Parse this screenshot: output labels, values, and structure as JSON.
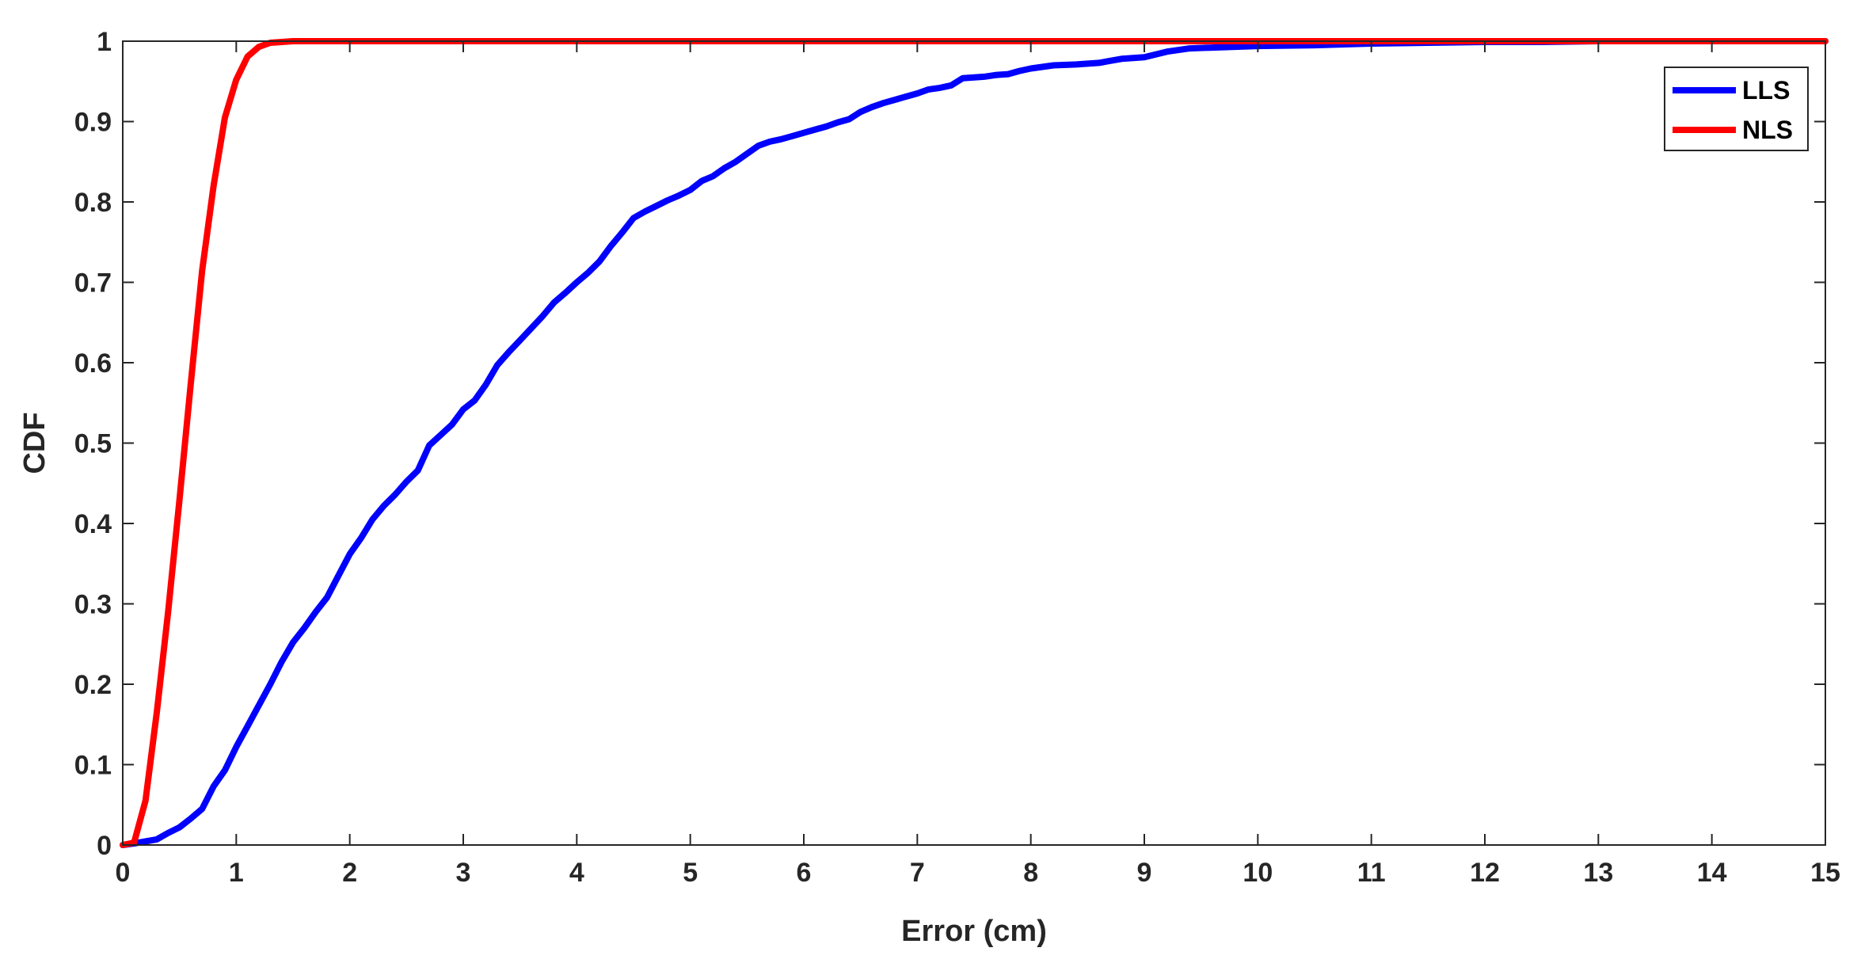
{
  "chart_data": {
    "type": "line",
    "title": "",
    "xlabel": "Error (cm)",
    "ylabel": "CDF",
    "xlim": [
      0,
      15
    ],
    "ylim": [
      0,
      1
    ],
    "x_ticks": [
      0,
      1,
      2,
      3,
      4,
      5,
      6,
      7,
      8,
      9,
      10,
      11,
      12,
      13,
      14,
      15
    ],
    "x_tick_labels": [
      "0",
      "1",
      "2",
      "3",
      "4",
      "5",
      "6",
      "7",
      "8",
      "9",
      "10",
      "11",
      "12",
      "13",
      "14",
      "15"
    ],
    "y_ticks": [
      0,
      0.1,
      0.2,
      0.3,
      0.4,
      0.5,
      0.6,
      0.7,
      0.8,
      0.9,
      1
    ],
    "y_tick_labels": [
      "0",
      "0.1",
      "0.2",
      "0.3",
      "0.4",
      "0.5",
      "0.6",
      "0.7",
      "0.8",
      "0.9",
      "1"
    ],
    "grid": false,
    "legend_position": "top-right",
    "series": [
      {
        "name": "LLS",
        "color": "#0000ff",
        "x": [
          0,
          0.1,
          0.3,
          0.4,
          0.5,
          0.6,
          0.7,
          0.8,
          0.9,
          1.0,
          1.1,
          1.2,
          1.3,
          1.4,
          1.5,
          1.6,
          1.7,
          1.8,
          1.9,
          2.0,
          2.1,
          2.2,
          2.3,
          2.4,
          2.5,
          2.6,
          2.7,
          2.8,
          2.9,
          3.0,
          3.1,
          3.2,
          3.3,
          3.4,
          3.5,
          3.6,
          3.7,
          3.8,
          3.9,
          4.0,
          4.1,
          4.2,
          4.3,
          4.4,
          4.5,
          4.6,
          4.7,
          4.8,
          4.9,
          5.0,
          5.1,
          5.2,
          5.3,
          5.4,
          5.5,
          5.6,
          5.7,
          5.8,
          5.9,
          6.0,
          6.1,
          6.2,
          6.3,
          6.4,
          6.5,
          6.6,
          6.7,
          6.8,
          6.9,
          7.0,
          7.1,
          7.2,
          7.3,
          7.4,
          7.5,
          7.6,
          7.7,
          7.8,
          7.9,
          8.0,
          8.2,
          8.4,
          8.6,
          8.8,
          9.0,
          9.2,
          9.4,
          9.6,
          9.8,
          10.0,
          10.5,
          11.0,
          11.5,
          12.0,
          12.5,
          13.0,
          13.5,
          14.0,
          15.0
        ],
        "y": [
          0,
          0.002,
          0.007,
          0.015,
          0.022,
          0.033,
          0.045,
          0.073,
          0.093,
          0.122,
          0.148,
          0.174,
          0.2,
          0.228,
          0.252,
          0.27,
          0.29,
          0.308,
          0.335,
          0.362,
          0.382,
          0.405,
          0.422,
          0.436,
          0.452,
          0.466,
          0.497,
          0.51,
          0.523,
          0.542,
          0.553,
          0.573,
          0.597,
          0.613,
          0.628,
          0.643,
          0.658,
          0.675,
          0.687,
          0.7,
          0.712,
          0.726,
          0.745,
          0.762,
          0.78,
          0.788,
          0.795,
          0.802,
          0.808,
          0.815,
          0.826,
          0.832,
          0.842,
          0.85,
          0.86,
          0.87,
          0.875,
          0.878,
          0.882,
          0.886,
          0.89,
          0.894,
          0.899,
          0.903,
          0.912,
          0.918,
          0.923,
          0.927,
          0.931,
          0.935,
          0.94,
          0.942,
          0.945,
          0.954,
          0.955,
          0.956,
          0.958,
          0.959,
          0.963,
          0.966,
          0.97,
          0.971,
          0.973,
          0.978,
          0.98,
          0.987,
          0.991,
          0.992,
          0.993,
          0.994,
          0.995,
          0.997,
          0.998,
          0.999,
          0.999,
          1.0,
          1.0,
          1.0,
          1.0
        ]
      },
      {
        "name": "NLS",
        "color": "#ff0000",
        "x": [
          0,
          0.1,
          0.2,
          0.3,
          0.4,
          0.5,
          0.6,
          0.7,
          0.8,
          0.9,
          1.0,
          1.1,
          1.2,
          1.3,
          1.4,
          1.5,
          1.6,
          2.0,
          3.0,
          5.0,
          10.0,
          15.0
        ],
        "y": [
          0,
          0.003,
          0.055,
          0.165,
          0.29,
          0.43,
          0.575,
          0.715,
          0.82,
          0.905,
          0.952,
          0.981,
          0.993,
          0.998,
          0.999,
          1.0,
          1.0,
          1.0,
          1.0,
          1.0,
          1.0,
          1.0
        ]
      }
    ]
  }
}
